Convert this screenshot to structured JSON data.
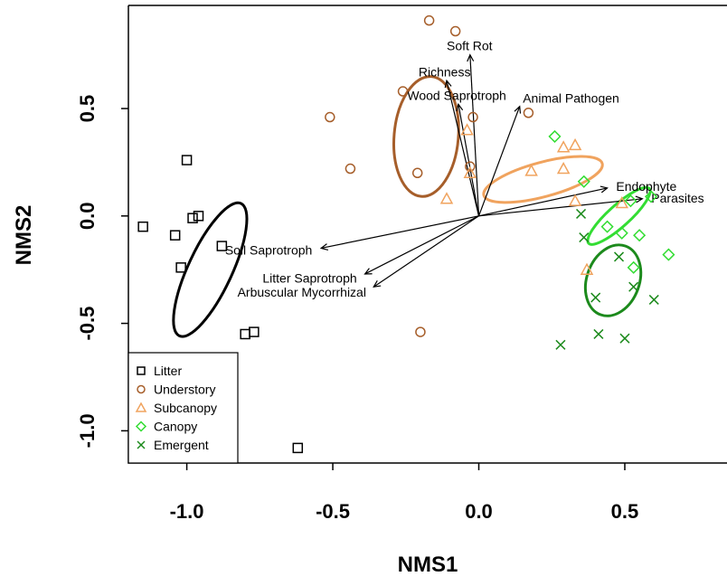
{
  "chart_data": {
    "type": "scatter",
    "xlabel": "NMS1",
    "ylabel": "NMS2",
    "xlim": [
      -1.2,
      0.85
    ],
    "ylim": [
      -1.15,
      0.98
    ],
    "xticks": [
      {
        "value": -1.0,
        "label": "-1.0"
      },
      {
        "value": -0.5,
        "label": "-0.5"
      },
      {
        "value": 0.0,
        "label": "0.0"
      },
      {
        "value": 0.5,
        "label": "0.5"
      }
    ],
    "yticks": [
      {
        "value": -1.0,
        "label": "-1.0"
      },
      {
        "value": -0.5,
        "label": "-0.5"
      },
      {
        "value": 0.0,
        "label": "0.0"
      },
      {
        "value": 0.5,
        "label": "0.5"
      }
    ],
    "grid": false,
    "legend_position": "bottom-left",
    "series": [
      {
        "name": "Litter",
        "marker": "square",
        "color": "#000000",
        "points": [
          [
            -1.15,
            -0.05
          ],
          [
            -1.0,
            0.26
          ],
          [
            -1.04,
            -0.09
          ],
          [
            -0.98,
            -0.01
          ],
          [
            -0.96,
            0.0
          ],
          [
            -1.02,
            -0.24
          ],
          [
            -0.88,
            -0.14
          ],
          [
            -0.8,
            -0.55
          ],
          [
            -0.77,
            -0.54
          ],
          [
            -0.62,
            -1.08
          ]
        ],
        "ellipse": {
          "cx": -0.92,
          "cy": -0.25,
          "rx": 0.075,
          "ry": 0.34,
          "angle": 25
        }
      },
      {
        "name": "Understory",
        "marker": "circle",
        "color": "#a65e2a",
        "points": [
          [
            -0.17,
            0.91
          ],
          [
            -0.08,
            0.86
          ],
          [
            -0.51,
            0.46
          ],
          [
            -0.26,
            0.58
          ],
          [
            -0.44,
            0.22
          ],
          [
            -0.21,
            0.2
          ],
          [
            -0.03,
            0.23
          ],
          [
            -0.02,
            0.46
          ],
          [
            0.17,
            0.48
          ],
          [
            -0.2,
            -0.54
          ]
        ],
        "ellipse": {
          "cx": -0.18,
          "cy": 0.37,
          "rx": 0.11,
          "ry": 0.28,
          "angle": 5
        }
      },
      {
        "name": "Subcanopy",
        "marker": "triangle",
        "color": "#f0a35e",
        "points": [
          [
            -0.04,
            0.4
          ],
          [
            -0.03,
            0.2
          ],
          [
            -0.11,
            0.08
          ],
          [
            0.18,
            0.21
          ],
          [
            0.29,
            0.32
          ],
          [
            0.33,
            0.33
          ],
          [
            0.29,
            0.22
          ],
          [
            0.33,
            0.07
          ],
          [
            0.37,
            -0.25
          ],
          [
            0.49,
            0.06
          ]
        ],
        "ellipse": {
          "cx": 0.22,
          "cy": 0.17,
          "rx": 0.21,
          "ry": 0.08,
          "angle": -15
        }
      },
      {
        "name": "Canopy",
        "marker": "diamond",
        "color": "#33dd33",
        "points": [
          [
            0.26,
            0.37
          ],
          [
            0.36,
            0.16
          ],
          [
            0.44,
            -0.05
          ],
          [
            0.52,
            0.07
          ],
          [
            0.55,
            -0.09
          ],
          [
            0.53,
            -0.24
          ],
          [
            0.65,
            -0.18
          ],
          [
            0.59,
            0.09
          ],
          [
            0.49,
            -0.08
          ]
        ],
        "ellipse": {
          "cx": 0.48,
          "cy": 0.0,
          "rx": 0.14,
          "ry": 0.05,
          "angle": -42
        }
      },
      {
        "name": "Emergent",
        "marker": "x",
        "color": "#1c8a1c",
        "points": [
          [
            0.35,
            0.01
          ],
          [
            0.36,
            -0.1
          ],
          [
            0.4,
            -0.38
          ],
          [
            0.41,
            -0.55
          ],
          [
            0.28,
            -0.6
          ],
          [
            0.48,
            -0.19
          ],
          [
            0.5,
            -0.57
          ],
          [
            0.53,
            -0.33
          ],
          [
            0.6,
            -0.39
          ]
        ],
        "ellipse": {
          "cx": 0.46,
          "cy": -0.3,
          "rx": 0.09,
          "ry": 0.17,
          "angle": 20
        }
      }
    ],
    "vectors": [
      {
        "label": "Soft Rot",
        "x": -0.03,
        "y": 0.75
      },
      {
        "label": "Richness",
        "x": -0.11,
        "y": 0.63
      },
      {
        "label": "Wood Saprotroph",
        "x": -0.07,
        "y": 0.52
      },
      {
        "label": "Animal Pathogen",
        "x": 0.14,
        "y": 0.51
      },
      {
        "label": "Endophyte",
        "x": 0.44,
        "y": 0.13
      },
      {
        "label": "Parasites",
        "x": 0.56,
        "y": 0.08
      },
      {
        "label": "Soil Saprotroph",
        "x": -0.54,
        "y": -0.15
      },
      {
        "label": "Litter Saprotroph",
        "x": -0.39,
        "y": -0.27
      },
      {
        "label": "Arbuscular Mycorrhizal",
        "x": -0.36,
        "y": -0.33
      }
    ]
  }
}
